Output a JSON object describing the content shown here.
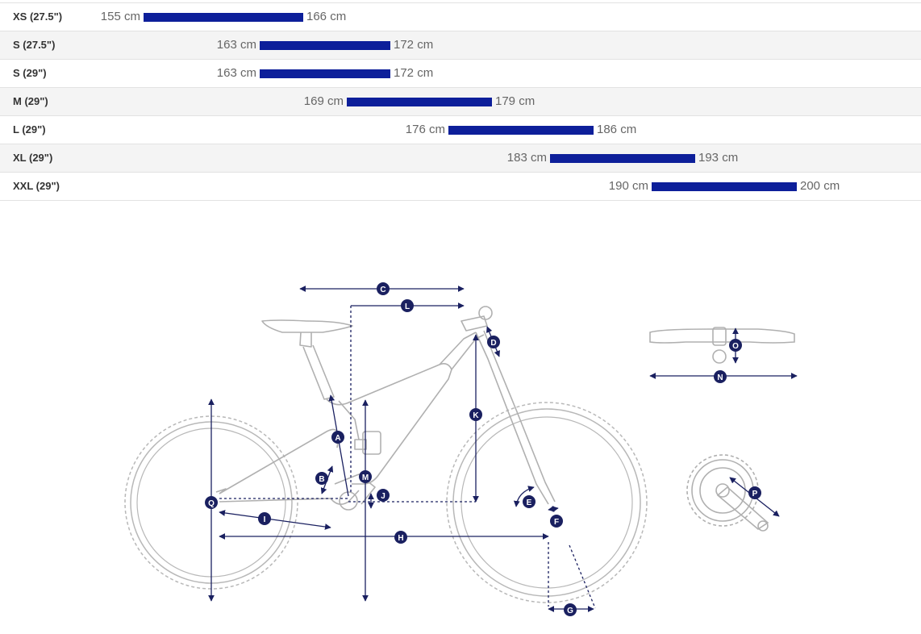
{
  "size_chart": {
    "rows": [
      {
        "size": "XS (27.5\")",
        "min": "155 cm",
        "max": "166 cm",
        "min_cm": 155,
        "max_cm": 166
      },
      {
        "size": "S (27.5\")",
        "min": "163 cm",
        "max": "172 cm",
        "min_cm": 163,
        "max_cm": 172
      },
      {
        "size": "S (29\")",
        "min": "163 cm",
        "max": "172 cm",
        "min_cm": 163,
        "max_cm": 172
      },
      {
        "size": "M (29\")",
        "min": "169 cm",
        "max": "179 cm",
        "min_cm": 169,
        "max_cm": 179
      },
      {
        "size": "L (29\")",
        "min": "176 cm",
        "max": "186 cm",
        "min_cm": 176,
        "max_cm": 186
      },
      {
        "size": "XL (29\")",
        "min": "183 cm",
        "max": "193 cm",
        "min_cm": 183,
        "max_cm": 193
      },
      {
        "size": "XXL (29\")",
        "min": "190 cm",
        "max": "200 cm",
        "min_cm": 190,
        "max_cm": 200
      }
    ],
    "bar_color": "#0d1f9a"
  },
  "geometry_diagram": {
    "labels": {
      "A": "A",
      "B": "B",
      "C": "C",
      "D": "D",
      "E": "E",
      "F": "F",
      "G": "G",
      "H": "H",
      "I": "I",
      "J": "J",
      "K": "K",
      "L": "L",
      "M": "M",
      "N": "N",
      "O": "O",
      "P": "P",
      "Q": "Q"
    },
    "marker_color": "#1a2060",
    "frame_color": "#b8b8b8"
  }
}
